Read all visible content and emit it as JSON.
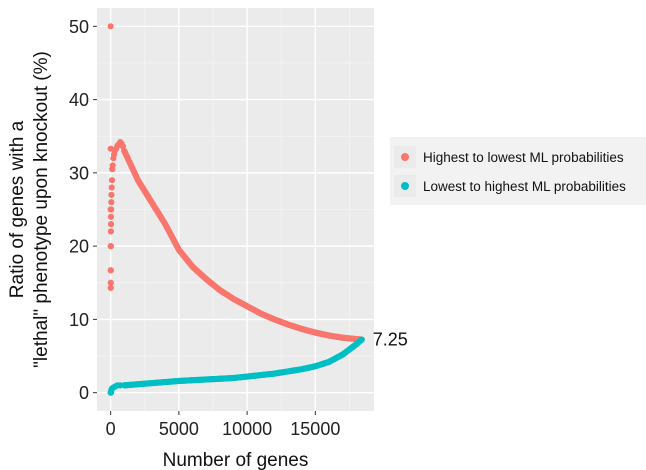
{
  "chart_data": {
    "type": "scatter",
    "xlabel": "Number of genes",
    "ylabel_line1": "Ratio of genes with a",
    "ylabel_line2": "\"lethal\" phenotype upon knockout (%)",
    "xlim": [
      -1000,
      19300
    ],
    "ylim": [
      -2.5,
      52.5
    ],
    "xticks": [
      0,
      5000,
      10000,
      15000
    ],
    "yticks": [
      0,
      10,
      20,
      30,
      40,
      50
    ],
    "grid": true,
    "legend_position": "right",
    "annotation": {
      "text": "7.25",
      "x": 18400,
      "y": 7.25
    },
    "series": [
      {
        "name": "Highest to lowest ML probabilities",
        "color": "#f8766d",
        "early_points": [
          [
            1,
            50.0
          ],
          [
            3,
            33.3
          ],
          [
            4,
            25.0
          ],
          [
            5,
            20.0
          ],
          [
            7,
            14.3
          ],
          [
            8,
            16.7
          ],
          [
            10,
            15.0
          ],
          [
            12,
            16.7
          ],
          [
            15,
            20.0
          ],
          [
            20,
            22.0
          ],
          [
            25,
            24.0
          ],
          [
            30,
            23.0
          ],
          [
            40,
            25.0
          ],
          [
            50,
            26.0
          ],
          [
            60,
            27.0
          ],
          [
            80,
            28.0
          ],
          [
            100,
            29.0
          ],
          [
            120,
            30.5
          ],
          [
            150,
            31.0
          ],
          [
            200,
            32.0
          ],
          [
            250,
            32.5
          ],
          [
            300,
            33.0
          ],
          [
            400,
            33.3
          ],
          [
            500,
            33.7
          ],
          [
            600,
            33.9
          ],
          [
            700,
            34.2
          ],
          [
            800,
            34.0
          ],
          [
            900,
            33.6
          ],
          [
            1000,
            33.0
          ]
        ],
        "curve_points": [
          [
            1000,
            33.0
          ],
          [
            1500,
            31.0
          ],
          [
            2000,
            29.0
          ],
          [
            3000,
            26.0
          ],
          [
            4000,
            23.0
          ],
          [
            5000,
            19.5
          ],
          [
            6000,
            17.2
          ],
          [
            7000,
            15.5
          ],
          [
            8000,
            14.0
          ],
          [
            9000,
            12.8
          ],
          [
            10000,
            11.8
          ],
          [
            11000,
            10.8
          ],
          [
            12000,
            10.0
          ],
          [
            13000,
            9.3
          ],
          [
            14000,
            8.7
          ],
          [
            15000,
            8.2
          ],
          [
            16000,
            7.8
          ],
          [
            17000,
            7.5
          ],
          [
            18400,
            7.25
          ]
        ]
      },
      {
        "name": "Lowest to highest ML probabilities",
        "color": "#00bfc4",
        "early_points": [
          [
            1,
            0.0
          ],
          [
            20,
            0.0
          ],
          [
            50,
            0.3
          ],
          [
            80,
            0.5
          ],
          [
            120,
            0.6
          ],
          [
            200,
            0.7
          ],
          [
            300,
            0.8
          ],
          [
            400,
            0.9
          ],
          [
            500,
            1.0
          ],
          [
            700,
            1.0
          ],
          [
            1000,
            1.0
          ]
        ],
        "curve_points": [
          [
            1000,
            1.0
          ],
          [
            3000,
            1.3
          ],
          [
            5000,
            1.6
          ],
          [
            7000,
            1.8
          ],
          [
            9000,
            2.0
          ],
          [
            11000,
            2.4
          ],
          [
            12000,
            2.6
          ],
          [
            13000,
            2.9
          ],
          [
            14000,
            3.2
          ],
          [
            15000,
            3.6
          ],
          [
            16000,
            4.2
          ],
          [
            17000,
            5.2
          ],
          [
            18000,
            6.6
          ],
          [
            18400,
            7.25
          ]
        ]
      }
    ]
  }
}
